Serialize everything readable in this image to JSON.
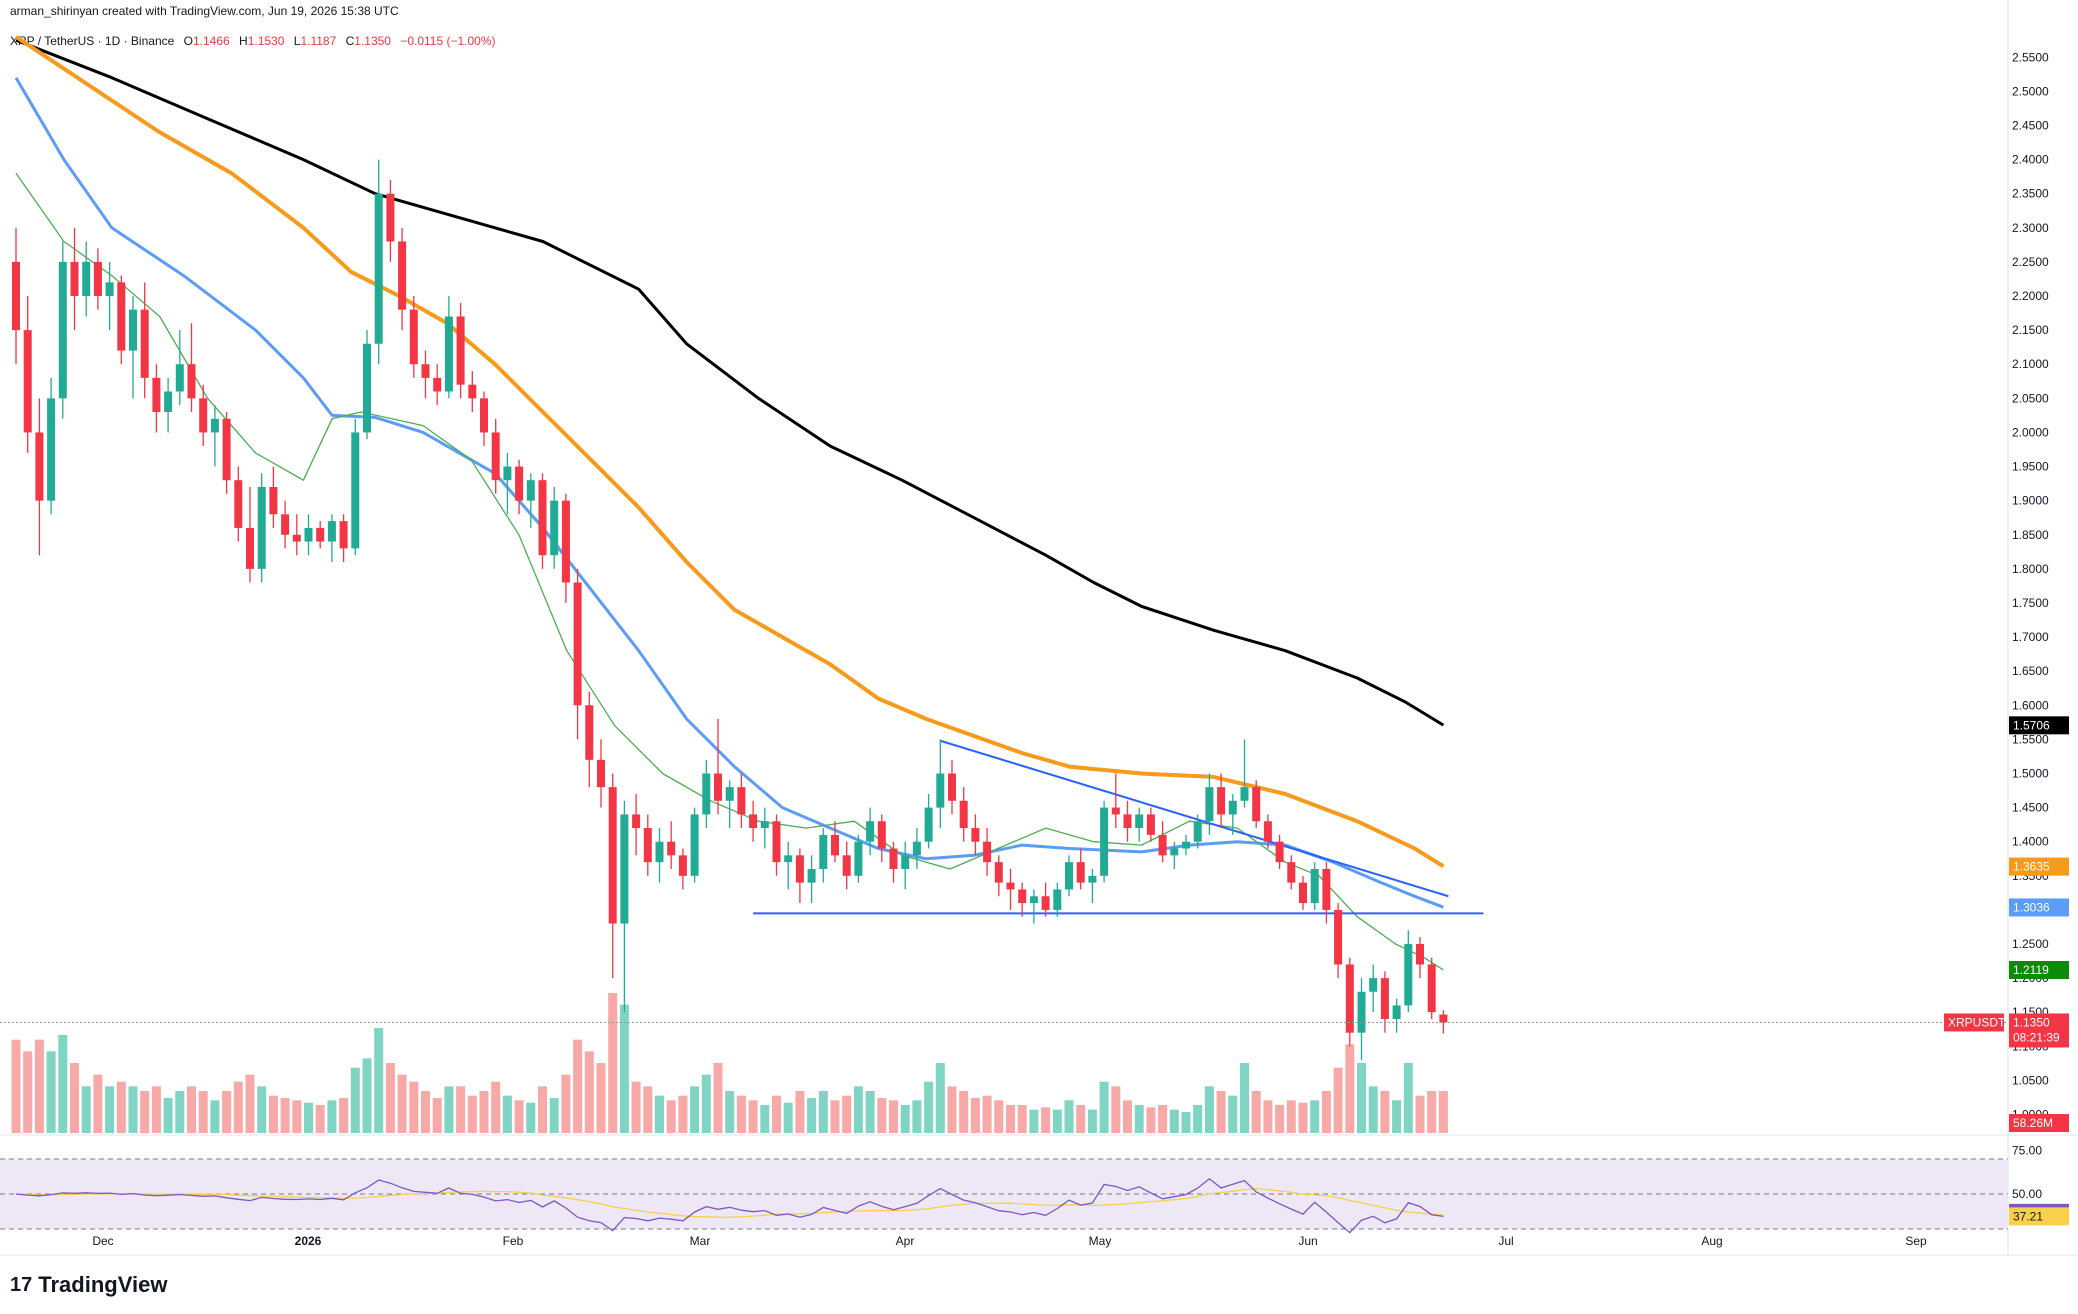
{
  "header": {
    "attribution": "arman_shirinyan created with TradingView.com, Jun 19, 2026 15:38 UTC",
    "symbol": "XRP / TetherUS · 1D · Binance",
    "ohlc": {
      "o_label": "O",
      "o": "1.1466",
      "h_label": "H",
      "h": "1.1530",
      "l_label": "L",
      "l": "1.1187",
      "c_label": "C",
      "c": "1.1350",
      "change": "−0.0115 (−1.00%)"
    }
  },
  "logo": {
    "text": "TradingView",
    "mark": "17"
  },
  "colors": {
    "up": "#22ab94",
    "down": "#f23645",
    "up_vol": "#7fd4c4",
    "down_vol": "#f7a9a7",
    "ema200": "#000000",
    "ema100": "#f89a1b",
    "ema50": "#5b9cf6",
    "ma20": "#4caf50",
    "trendline": "#2962ff",
    "rsi": "#7e57c2",
    "rsi_ma": "#f7d14b",
    "rsi_band": "#ede7f6"
  },
  "chart_data": {
    "type": "candlestick",
    "price_axis": {
      "ticks": [
        "2.5500",
        "2.5000",
        "2.4500",
        "2.4000",
        "2.3500",
        "2.3000",
        "2.2500",
        "2.2000",
        "2.1500",
        "2.1000",
        "2.0500",
        "2.0000",
        "1.9500",
        "1.9000",
        "1.8500",
        "1.8000",
        "1.7500",
        "1.7000",
        "1.6500",
        "1.6000",
        "1.5500",
        "1.5000",
        "1.4500",
        "1.4000",
        "1.3500",
        "1.3000",
        "1.2500",
        "1.2000",
        "1.1500",
        "1.1000",
        "1.0500",
        "1.0000"
      ],
      "range": [
        0.97,
        2.59
      ]
    },
    "time_axis": {
      "labels": [
        "Dec",
        "2026",
        "Feb",
        "Mar",
        "Apr",
        "May",
        "Jun",
        "Jul",
        "Aug",
        "Sep"
      ]
    },
    "tags": [
      {
        "name": "ema200",
        "value": "1.5706",
        "color": "#000000"
      },
      {
        "name": "ema100",
        "value": "1.3635",
        "color": "#f89a1b"
      },
      {
        "name": "ema50",
        "value": "1.3036",
        "color": "#5b9cf6"
      },
      {
        "name": "ma20",
        "value": "1.2119",
        "color": "#0b8a0b"
      },
      {
        "name": "last",
        "symbol": "XRPUSDT",
        "value": "1.1350",
        "countdown": "08:21:39",
        "color": "#f23645"
      },
      {
        "name": "volume",
        "value": "58.26M",
        "color": "#f23645"
      }
    ],
    "rsi": {
      "levels": [
        "75.00",
        "50.00"
      ],
      "range": [
        18,
        82
      ],
      "values": [
        {
          "label": "39.22",
          "value": 39.22,
          "color": "#7e57c2"
        },
        {
          "label": "37.21",
          "value": 37.21,
          "color": "#f7d14b"
        }
      ]
    },
    "annotations": {
      "support": 1.295,
      "descending_trendline": {
        "from": [
          "Mar 17",
          1.548
        ],
        "to": [
          "Jun 14",
          1.32
        ]
      }
    },
    "moving_averages": {
      "ema200": [
        [
          0,
          2.575
        ],
        [
          20,
          2.52
        ],
        [
          40,
          2.46
        ],
        [
          60,
          2.4
        ],
        [
          75,
          2.35
        ],
        [
          90,
          2.32
        ],
        [
          110,
          2.28
        ],
        [
          130,
          2.21
        ],
        [
          140,
          2.13
        ],
        [
          155,
          2.05
        ],
        [
          170,
          1.98
        ],
        [
          185,
          1.93
        ],
        [
          200,
          1.875
        ],
        [
          215,
          1.82
        ],
        [
          225,
          1.78
        ],
        [
          235,
          1.745
        ],
        [
          250,
          1.71
        ],
        [
          265,
          1.68
        ],
        [
          280,
          1.64
        ],
        [
          290,
          1.605
        ],
        [
          298,
          1.571
        ]
      ],
      "ema100": [
        [
          0,
          2.58
        ],
        [
          15,
          2.51
        ],
        [
          30,
          2.44
        ],
        [
          45,
          2.38
        ],
        [
          60,
          2.3
        ],
        [
          70,
          2.235
        ],
        [
          80,
          2.2
        ],
        [
          90,
          2.16
        ],
        [
          100,
          2.1
        ],
        [
          110,
          2.03
        ],
        [
          120,
          1.96
        ],
        [
          130,
          1.89
        ],
        [
          140,
          1.81
        ],
        [
          150,
          1.74
        ],
        [
          160,
          1.7
        ],
        [
          170,
          1.66
        ],
        [
          180,
          1.61
        ],
        [
          190,
          1.58
        ],
        [
          200,
          1.555
        ],
        [
          210,
          1.53
        ],
        [
          220,
          1.51
        ],
        [
          235,
          1.5
        ],
        [
          250,
          1.495
        ],
        [
          265,
          1.47
        ],
        [
          280,
          1.43
        ],
        [
          292,
          1.39
        ],
        [
          298,
          1.364
        ]
      ],
      "ema50": [
        [
          0,
          2.52
        ],
        [
          10,
          2.4
        ],
        [
          20,
          2.3
        ],
        [
          35,
          2.23
        ],
        [
          50,
          2.15
        ],
        [
          60,
          2.08
        ],
        [
          66,
          2.025
        ],
        [
          75,
          2.022
        ],
        [
          85,
          2.0
        ],
        [
          100,
          1.94
        ],
        [
          110,
          1.86
        ],
        [
          120,
          1.77
        ],
        [
          130,
          1.68
        ],
        [
          140,
          1.58
        ],
        [
          150,
          1.51
        ],
        [
          160,
          1.45
        ],
        [
          170,
          1.42
        ],
        [
          180,
          1.39
        ],
        [
          190,
          1.375
        ],
        [
          200,
          1.38
        ],
        [
          210,
          1.395
        ],
        [
          220,
          1.39
        ],
        [
          235,
          1.385
        ],
        [
          245,
          1.395
        ],
        [
          255,
          1.4
        ],
        [
          265,
          1.395
        ],
        [
          275,
          1.37
        ],
        [
          285,
          1.34
        ],
        [
          292,
          1.32
        ],
        [
          298,
          1.304
        ]
      ],
      "ma20": [
        [
          0,
          2.38
        ],
        [
          10,
          2.28
        ],
        [
          20,
          2.23
        ],
        [
          30,
          2.17
        ],
        [
          40,
          2.05
        ],
        [
          50,
          1.97
        ],
        [
          60,
          1.93
        ],
        [
          66,
          2.02
        ],
        [
          72,
          2.03
        ],
        [
          85,
          2.01
        ],
        [
          95,
          1.96
        ],
        [
          105,
          1.85
        ],
        [
          115,
          1.68
        ],
        [
          125,
          1.57
        ],
        [
          135,
          1.5
        ],
        [
          145,
          1.46
        ],
        [
          155,
          1.43
        ],
        [
          165,
          1.42
        ],
        [
          175,
          1.43
        ],
        [
          185,
          1.38
        ],
        [
          195,
          1.36
        ],
        [
          205,
          1.39
        ],
        [
          215,
          1.42
        ],
        [
          225,
          1.4
        ],
        [
          235,
          1.395
        ],
        [
          245,
          1.43
        ],
        [
          255,
          1.42
        ],
        [
          265,
          1.37
        ],
        [
          272,
          1.35
        ],
        [
          280,
          1.29
        ],
        [
          288,
          1.25
        ],
        [
          294,
          1.23
        ],
        [
          298,
          1.212
        ]
      ]
    },
    "candles_note": "last candle O 1.1466 H 1.1530 L 1.1187 C 1.1350",
    "candles": [
      [
        2.25,
        2.3,
        2.1,
        2.15,
        0.4
      ],
      [
        2.15,
        2.2,
        1.97,
        2.0,
        0.35
      ],
      [
        2.0,
        2.05,
        1.82,
        1.9,
        0.4
      ],
      [
        1.9,
        2.08,
        1.88,
        2.05,
        0.35
      ],
      [
        2.05,
        2.28,
        2.02,
        2.25,
        0.42
      ],
      [
        2.25,
        2.3,
        2.15,
        2.2,
        0.3
      ],
      [
        2.2,
        2.28,
        2.17,
        2.25,
        0.2
      ],
      [
        2.25,
        2.27,
        2.18,
        2.2,
        0.25
      ],
      [
        2.2,
        2.25,
        2.15,
        2.22,
        0.2
      ],
      [
        2.22,
        2.23,
        2.1,
        2.12,
        0.22
      ],
      [
        2.12,
        2.2,
        2.05,
        2.18,
        0.2
      ],
      [
        2.18,
        2.22,
        2.05,
        2.08,
        0.18
      ],
      [
        2.08,
        2.1,
        2.0,
        2.03,
        0.2
      ],
      [
        2.03,
        2.08,
        2.0,
        2.06,
        0.15
      ],
      [
        2.06,
        2.15,
        2.04,
        2.1,
        0.18
      ],
      [
        2.1,
        2.16,
        2.03,
        2.05,
        0.2
      ],
      [
        2.05,
        2.07,
        1.98,
        2.0,
        0.18
      ],
      [
        2.0,
        2.04,
        1.95,
        2.02,
        0.14
      ],
      [
        2.02,
        2.03,
        1.91,
        1.93,
        0.18
      ],
      [
        1.93,
        1.95,
        1.84,
        1.86,
        0.22
      ],
      [
        1.86,
        1.92,
        1.78,
        1.8,
        0.25
      ],
      [
        1.8,
        1.94,
        1.78,
        1.92,
        0.2
      ],
      [
        1.92,
        1.95,
        1.86,
        1.88,
        0.16
      ],
      [
        1.88,
        1.9,
        1.83,
        1.85,
        0.15
      ],
      [
        1.85,
        1.88,
        1.82,
        1.84,
        0.14
      ],
      [
        1.84,
        1.88,
        1.82,
        1.86,
        0.13
      ],
      [
        1.86,
        1.87,
        1.83,
        1.84,
        0.12
      ],
      [
        1.84,
        1.88,
        1.81,
        1.87,
        0.14
      ],
      [
        1.87,
        1.88,
        1.81,
        1.83,
        0.15
      ],
      [
        1.83,
        2.02,
        1.82,
        2.0,
        0.28
      ],
      [
        2.0,
        2.15,
        1.99,
        2.13,
        0.32
      ],
      [
        2.13,
        2.4,
        2.1,
        2.35,
        0.45
      ],
      [
        2.35,
        2.37,
        2.25,
        2.28,
        0.3
      ],
      [
        2.28,
        2.3,
        2.15,
        2.18,
        0.25
      ],
      [
        2.18,
        2.2,
        2.08,
        2.1,
        0.22
      ],
      [
        2.1,
        2.12,
        2.05,
        2.08,
        0.18
      ],
      [
        2.08,
        2.1,
        2.04,
        2.06,
        0.15
      ],
      [
        2.06,
        2.2,
        2.05,
        2.17,
        0.2
      ],
      [
        2.17,
        2.19,
        2.05,
        2.07,
        0.2
      ],
      [
        2.07,
        2.09,
        2.03,
        2.05,
        0.16
      ],
      [
        2.05,
        2.06,
        1.98,
        2.0,
        0.18
      ],
      [
        2.0,
        2.02,
        1.91,
        1.93,
        0.22
      ],
      [
        1.93,
        1.97,
        1.88,
        1.95,
        0.16
      ],
      [
        1.95,
        1.96,
        1.88,
        1.9,
        0.14
      ],
      [
        1.9,
        1.94,
        1.86,
        1.93,
        0.13
      ],
      [
        1.93,
        1.94,
        1.8,
        1.82,
        0.2
      ],
      [
        1.82,
        1.92,
        1.8,
        1.9,
        0.15
      ],
      [
        1.9,
        1.91,
        1.75,
        1.78,
        0.25
      ],
      [
        1.78,
        1.8,
        1.55,
        1.6,
        0.4
      ],
      [
        1.6,
        1.62,
        1.48,
        1.52,
        0.35
      ],
      [
        1.52,
        1.55,
        1.45,
        1.48,
        0.3
      ],
      [
        1.48,
        1.5,
        1.2,
        1.28,
        0.6
      ],
      [
        1.28,
        1.46,
        1.15,
        1.44,
        0.55
      ],
      [
        1.44,
        1.47,
        1.38,
        1.42,
        0.22
      ],
      [
        1.42,
        1.44,
        1.35,
        1.37,
        0.2
      ],
      [
        1.37,
        1.42,
        1.34,
        1.4,
        0.16
      ],
      [
        1.4,
        1.43,
        1.36,
        1.38,
        0.14
      ],
      [
        1.38,
        1.39,
        1.33,
        1.35,
        0.16
      ],
      [
        1.35,
        1.45,
        1.34,
        1.44,
        0.2
      ],
      [
        1.44,
        1.52,
        1.42,
        1.5,
        0.25
      ],
      [
        1.5,
        1.58,
        1.44,
        1.46,
        0.3
      ],
      [
        1.46,
        1.49,
        1.42,
        1.48,
        0.18
      ],
      [
        1.48,
        1.5,
        1.42,
        1.44,
        0.16
      ],
      [
        1.44,
        1.46,
        1.4,
        1.42,
        0.14
      ],
      [
        1.42,
        1.45,
        1.39,
        1.43,
        0.12
      ],
      [
        1.43,
        1.44,
        1.35,
        1.37,
        0.16
      ],
      [
        1.37,
        1.4,
        1.33,
        1.38,
        0.13
      ],
      [
        1.38,
        1.39,
        1.31,
        1.34,
        0.18
      ],
      [
        1.34,
        1.38,
        1.31,
        1.36,
        0.15
      ],
      [
        1.36,
        1.42,
        1.34,
        1.41,
        0.18
      ],
      [
        1.41,
        1.43,
        1.37,
        1.38,
        0.14
      ],
      [
        1.38,
        1.4,
        1.33,
        1.35,
        0.16
      ],
      [
        1.35,
        1.41,
        1.34,
        1.4,
        0.2
      ],
      [
        1.4,
        1.45,
        1.38,
        1.43,
        0.18
      ],
      [
        1.43,
        1.44,
        1.37,
        1.39,
        0.15
      ],
      [
        1.39,
        1.4,
        1.34,
        1.36,
        0.14
      ],
      [
        1.36,
        1.4,
        1.33,
        1.38,
        0.12
      ],
      [
        1.38,
        1.42,
        1.36,
        1.4,
        0.14
      ],
      [
        1.4,
        1.47,
        1.39,
        1.45,
        0.22
      ],
      [
        1.45,
        1.55,
        1.42,
        1.5,
        0.3
      ],
      [
        1.5,
        1.52,
        1.44,
        1.46,
        0.2
      ],
      [
        1.46,
        1.48,
        1.4,
        1.42,
        0.18
      ],
      [
        1.42,
        1.44,
        1.38,
        1.4,
        0.15
      ],
      [
        1.4,
        1.42,
        1.35,
        1.37,
        0.16
      ],
      [
        1.37,
        1.38,
        1.32,
        1.34,
        0.14
      ],
      [
        1.34,
        1.36,
        1.3,
        1.33,
        0.12
      ],
      [
        1.33,
        1.34,
        1.29,
        1.31,
        0.12
      ],
      [
        1.31,
        1.33,
        1.28,
        1.32,
        0.1
      ],
      [
        1.32,
        1.34,
        1.29,
        1.3,
        0.11
      ],
      [
        1.3,
        1.34,
        1.29,
        1.33,
        0.1
      ],
      [
        1.33,
        1.38,
        1.32,
        1.37,
        0.14
      ],
      [
        1.37,
        1.39,
        1.33,
        1.34,
        0.12
      ],
      [
        1.34,
        1.36,
        1.31,
        1.35,
        0.1
      ],
      [
        1.35,
        1.46,
        1.34,
        1.45,
        0.22
      ],
      [
        1.45,
        1.5,
        1.42,
        1.44,
        0.2
      ],
      [
        1.44,
        1.46,
        1.4,
        1.42,
        0.14
      ],
      [
        1.42,
        1.45,
        1.4,
        1.44,
        0.12
      ],
      [
        1.44,
        1.45,
        1.4,
        1.41,
        0.11
      ],
      [
        1.41,
        1.43,
        1.37,
        1.38,
        0.12
      ],
      [
        1.38,
        1.4,
        1.36,
        1.39,
        0.1
      ],
      [
        1.39,
        1.41,
        1.38,
        1.4,
        0.09
      ],
      [
        1.4,
        1.44,
        1.39,
        1.43,
        0.12
      ],
      [
        1.43,
        1.5,
        1.41,
        1.48,
        0.2
      ],
      [
        1.48,
        1.5,
        1.42,
        1.44,
        0.18
      ],
      [
        1.44,
        1.47,
        1.41,
        1.46,
        0.16
      ],
      [
        1.46,
        1.55,
        1.45,
        1.48,
        0.3
      ],
      [
        1.48,
        1.49,
        1.42,
        1.43,
        0.18
      ],
      [
        1.43,
        1.44,
        1.39,
        1.4,
        0.14
      ],
      [
        1.4,
        1.41,
        1.36,
        1.37,
        0.12
      ],
      [
        1.37,
        1.38,
        1.33,
        1.34,
        0.14
      ],
      [
        1.34,
        1.35,
        1.3,
        1.31,
        0.13
      ],
      [
        1.31,
        1.37,
        1.3,
        1.36,
        0.14
      ],
      [
        1.36,
        1.37,
        1.28,
        1.3,
        0.18
      ],
      [
        1.3,
        1.31,
        1.2,
        1.22,
        0.28
      ],
      [
        1.22,
        1.23,
        1.1,
        1.12,
        0.38
      ],
      [
        1.12,
        1.2,
        1.08,
        1.18,
        0.3
      ],
      [
        1.18,
        1.22,
        1.15,
        1.2,
        0.2
      ],
      [
        1.2,
        1.21,
        1.12,
        1.14,
        0.18
      ],
      [
        1.14,
        1.17,
        1.12,
        1.16,
        0.14
      ],
      [
        1.16,
        1.27,
        1.15,
        1.25,
        0.3
      ],
      [
        1.25,
        1.26,
        1.2,
        1.22,
        0.16
      ],
      [
        1.22,
        1.23,
        1.14,
        1.15,
        0.18
      ],
      [
        1.1466,
        1.153,
        1.1187,
        1.135,
        0.18
      ]
    ]
  }
}
